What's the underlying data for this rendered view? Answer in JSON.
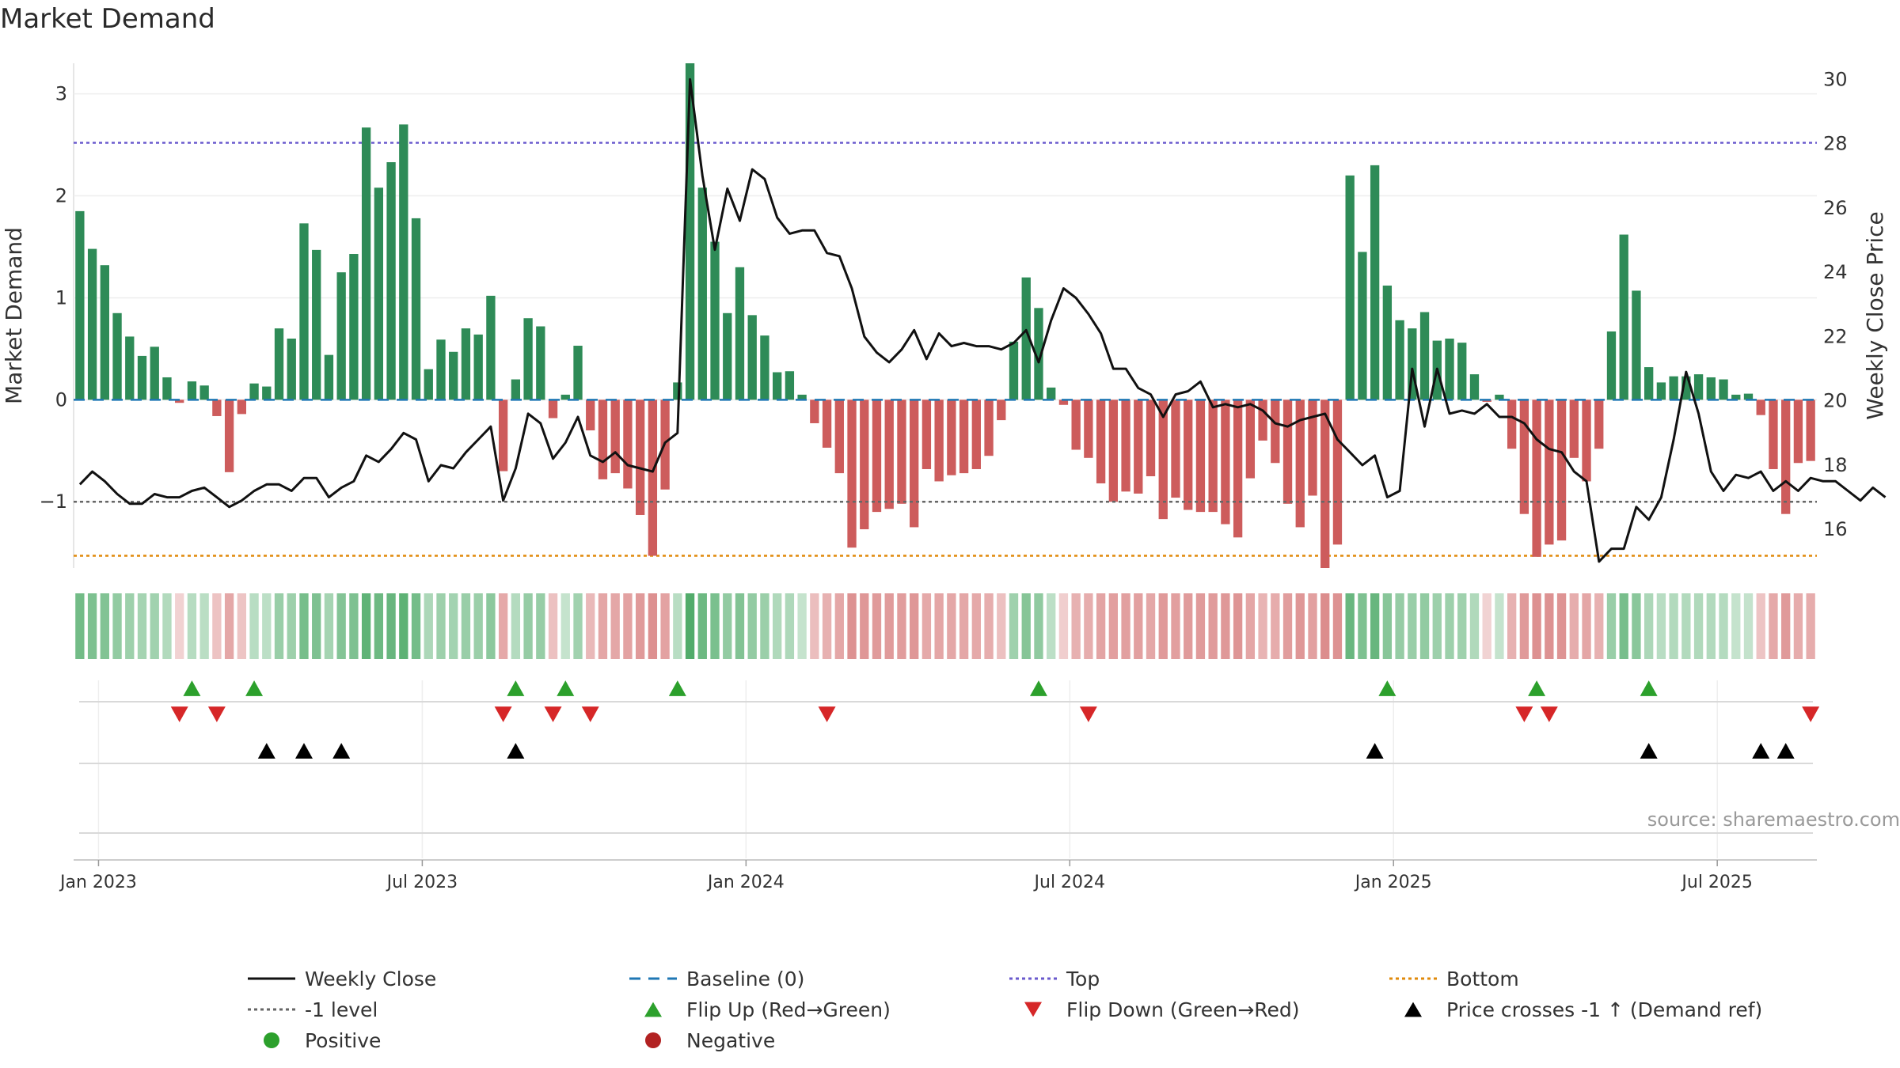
{
  "title": "Market Demand",
  "source": "source: sharemaestro.com",
  "colors": {
    "pos": "#2e8b57",
    "neg": "#cd5c5c",
    "close": "#111111",
    "baseline": "#1f77b4",
    "top": "#6a5acd",
    "bottom": "#e08a0b",
    "minus1": "#666666",
    "flipUp": "#2ca02c",
    "flipDown": "#d62728",
    "cross": "#000000",
    "posDot": "#2ca02c",
    "negDot": "#b22222"
  },
  "chart_data": {
    "type": "bar",
    "title": "Market Demand",
    "ylabel": "Market Demand",
    "y2label": "Weekly Close Price",
    "ylim": [
      -1.65,
      3.3
    ],
    "y2lim": [
      14.8,
      30.5
    ],
    "yticks": [
      "3",
      "2",
      "1",
      "0",
      "−1"
    ],
    "ytick_values": [
      3,
      2,
      1,
      0,
      -1
    ],
    "y2ticks": [
      "30",
      "28",
      "26",
      "24",
      "22",
      "20",
      "18",
      "16"
    ],
    "y2tick_values": [
      30,
      28,
      26,
      24,
      22,
      20,
      18,
      16
    ],
    "top_level": 2.52,
    "bottom_level": -1.53,
    "minus1_level": -1,
    "xticks": [
      "Jan 2023",
      "Jul 2023",
      "Jan 2024",
      "Jul 2024",
      "Jan 2025",
      "Jul 2025"
    ],
    "xtick_weeks": [
      2,
      28,
      54,
      80,
      106,
      132
    ],
    "demand": [
      1.85,
      1.48,
      1.32,
      0.85,
      0.62,
      0.43,
      0.52,
      0.22,
      -0.03,
      0.18,
      0.14,
      -0.16,
      -0.71,
      -0.14,
      0.16,
      0.13,
      0.7,
      0.6,
      1.73,
      1.47,
      0.44,
      1.25,
      1.43,
      2.67,
      2.08,
      2.33,
      2.7,
      1.78,
      0.3,
      0.59,
      0.47,
      0.7,
      0.64,
      1.02,
      -0.7,
      0.2,
      0.8,
      0.72,
      -0.18,
      0.05,
      0.53,
      -0.3,
      -0.78,
      -0.72,
      -0.87,
      -1.13,
      -1.53,
      -0.88,
      0.17,
      3.3,
      2.08,
      1.55,
      0.85,
      1.3,
      0.83,
      0.63,
      0.27,
      0.28,
      0.05,
      -0.23,
      -0.47,
      -0.72,
      -1.45,
      -1.27,
      -1.1,
      -1.07,
      -1.02,
      -1.25,
      -0.68,
      -0.8,
      -0.74,
      -0.72,
      -0.68,
      -0.55,
      -0.2,
      0.57,
      1.2,
      0.9,
      0.12,
      -0.05,
      -0.49,
      -0.57,
      -0.82,
      -1.0,
      -0.9,
      -0.92,
      -0.75,
      -1.17,
      -0.96,
      -1.08,
      -1.1,
      -1.1,
      -1.22,
      -1.35,
      -0.77,
      -0.4,
      -0.62,
      -1.02,
      -1.25,
      -0.94,
      -1.65,
      -1.42,
      2.2,
      1.45,
      2.3,
      1.12,
      0.78,
      0.7,
      0.86,
      0.58,
      0.6,
      0.56,
      0.25,
      -0.02,
      0.05,
      -0.48,
      -1.12,
      -1.54,
      -1.42,
      -1.38,
      -0.57,
      -0.8,
      -0.48,
      0.67,
      1.62,
      1.07,
      0.32,
      0.17,
      0.23,
      0.23,
      0.25,
      0.22,
      0.2,
      0.05,
      0.06,
      -0.15,
      -0.68,
      -1.12,
      -0.62,
      -0.6
    ],
    "close": [
      17.4,
      17.8,
      17.5,
      17.1,
      16.8,
      16.8,
      17.1,
      17.0,
      17.0,
      17.2,
      17.3,
      17.0,
      16.7,
      16.9,
      17.2,
      17.4,
      17.4,
      17.2,
      17.6,
      17.6,
      17.0,
      17.3,
      17.5,
      18.3,
      18.1,
      18.5,
      19.0,
      18.8,
      17.5,
      18.0,
      17.9,
      18.4,
      18.8,
      19.2,
      16.9,
      17.9,
      19.6,
      19.3,
      18.2,
      18.7,
      19.5,
      18.3,
      18.1,
      18.4,
      18.0,
      17.9,
      17.8,
      18.7,
      19.0,
      30.0,
      27.0,
      24.7,
      26.6,
      25.6,
      27.2,
      26.9,
      25.7,
      25.2,
      25.3,
      25.3,
      24.6,
      24.5,
      23.5,
      22.0,
      21.5,
      21.2,
      21.6,
      22.2,
      21.3,
      22.1,
      21.7,
      21.8,
      21.7,
      21.7,
      21.6,
      21.8,
      22.2,
      21.2,
      22.5,
      23.5,
      23.2,
      22.7,
      22.1,
      21.0,
      21.0,
      20.4,
      20.2,
      19.5,
      20.2,
      20.3,
      20.6,
      19.8,
      19.9,
      19.8,
      19.9,
      19.7,
      19.3,
      19.2,
      19.4,
      19.5,
      19.6,
      18.8,
      18.4,
      18.0,
      18.3,
      17.0,
      17.2,
      21.0,
      19.2,
      21.0,
      19.6,
      19.7,
      19.6,
      19.9,
      19.5,
      19.5,
      19.3,
      18.8,
      18.5,
      18.4,
      17.8,
      17.5,
      15.0,
      15.4,
      15.4,
      16.7,
      16.3,
      17.0,
      18.8,
      20.9,
      19.6,
      17.8,
      17.2,
      17.7,
      17.6,
      17.8,
      17.2,
      17.5,
      17.2,
      17.6,
      17.5,
      17.5,
      17.2,
      16.9,
      17.3,
      17.0
    ],
    "flip_up_weeks": [
      9,
      14,
      35,
      39,
      48,
      77,
      105,
      117,
      126
    ],
    "flip_down_weeks": [
      8,
      11,
      34,
      38,
      41,
      60,
      81,
      116,
      118,
      139
    ],
    "cross_weeks": [
      15,
      18,
      21,
      35,
      104,
      126,
      135,
      137
    ],
    "legend": [
      {
        "label": "Weekly Close",
        "kind": "line",
        "color": "#111111"
      },
      {
        "label": "Baseline (0)",
        "kind": "dash",
        "color": "#1f77b4"
      },
      {
        "label": "Top",
        "kind": "dot",
        "color": "#6a5acd"
      },
      {
        "label": "Bottom",
        "kind": "dot",
        "color": "#e08a0b"
      },
      {
        "label": "-1 level",
        "kind": "dot",
        "color": "#666666"
      },
      {
        "label": "Flip Up (Red→Green)",
        "kind": "tri-up",
        "color": "#2ca02c"
      },
      {
        "label": "Flip Down (Green→Red)",
        "kind": "tri-down",
        "color": "#d62728"
      },
      {
        "label": "Price crosses -1 ↑ (Demand ref)",
        "kind": "tri-up",
        "color": "#000000"
      },
      {
        "label": "Positive",
        "kind": "circle",
        "color": "#2ca02c"
      },
      {
        "label": "Negative",
        "kind": "circle",
        "color": "#b22222"
      }
    ]
  }
}
